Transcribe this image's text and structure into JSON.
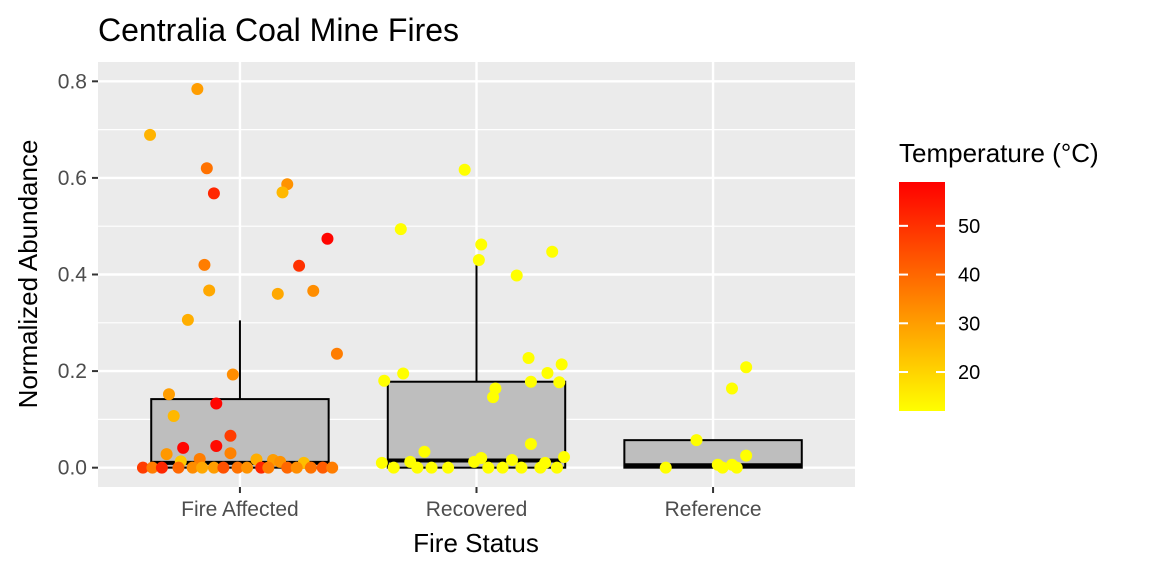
{
  "chart_data": {
    "type": "box",
    "title": "Centralia Coal Mine Fires",
    "xlabel": "Fire Status",
    "ylabel": "Normalized Abundance",
    "ylim": [
      -0.04,
      0.84
    ],
    "y_ticks": [
      0.0,
      0.2,
      0.4,
      0.6,
      0.8
    ],
    "y_tick_labels": [
      "0.0",
      "0.2",
      "0.4",
      "0.6",
      "0.8"
    ],
    "categories": [
      "Fire Affected",
      "Recovered",
      "Reference"
    ],
    "boxes": [
      {
        "category": "Fire Affected",
        "min": 0.0,
        "q1": 0.0,
        "median": 0.01,
        "q3": 0.142,
        "whisker_high": 0.305
      },
      {
        "category": "Recovered",
        "min": 0.0,
        "q1": 0.0,
        "median": 0.015,
        "q3": 0.178,
        "whisker_high": 0.44
      },
      {
        "category": "Reference",
        "min": 0.0,
        "q1": 0.0,
        "median": 0.005,
        "q3": 0.057,
        "whisker_high": 0.057
      }
    ],
    "points": [
      {
        "category": "Fire Affected",
        "jitter": -0.18,
        "y": 0.784,
        "temp": 30
      },
      {
        "category": "Fire Affected",
        "jitter": -0.38,
        "y": 0.689,
        "temp": 26
      },
      {
        "category": "Fire Affected",
        "jitter": -0.14,
        "y": 0.62,
        "temp": 38
      },
      {
        "category": "Fire Affected",
        "jitter": 0.2,
        "y": 0.587,
        "temp": 32
      },
      {
        "category": "Fire Affected",
        "jitter": 0.18,
        "y": 0.57,
        "temp": 25
      },
      {
        "category": "Fire Affected",
        "jitter": -0.11,
        "y": 0.568,
        "temp": 52
      },
      {
        "category": "Fire Affected",
        "jitter": 0.37,
        "y": 0.474,
        "temp": 58
      },
      {
        "category": "Fire Affected",
        "jitter": -0.15,
        "y": 0.42,
        "temp": 36
      },
      {
        "category": "Fire Affected",
        "jitter": 0.25,
        "y": 0.418,
        "temp": 50
      },
      {
        "category": "Fire Affected",
        "jitter": -0.13,
        "y": 0.367,
        "temp": 28
      },
      {
        "category": "Fire Affected",
        "jitter": 0.31,
        "y": 0.366,
        "temp": 33
      },
      {
        "category": "Fire Affected",
        "jitter": 0.16,
        "y": 0.36,
        "temp": 28
      },
      {
        "category": "Fire Affected",
        "jitter": -0.22,
        "y": 0.306,
        "temp": 27
      },
      {
        "category": "Fire Affected",
        "jitter": 0.41,
        "y": 0.236,
        "temp": 36
      },
      {
        "category": "Fire Affected",
        "jitter": -0.03,
        "y": 0.193,
        "temp": 33
      },
      {
        "category": "Fire Affected",
        "jitter": -0.3,
        "y": 0.152,
        "temp": 30
      },
      {
        "category": "Fire Affected",
        "jitter": -0.1,
        "y": 0.133,
        "temp": 58
      },
      {
        "category": "Fire Affected",
        "jitter": -0.28,
        "y": 0.107,
        "temp": 25
      },
      {
        "category": "Fire Affected",
        "jitter": -0.04,
        "y": 0.066,
        "temp": 48
      },
      {
        "category": "Fire Affected",
        "jitter": -0.24,
        "y": 0.041,
        "temp": 58
      },
      {
        "category": "Fire Affected",
        "jitter": -0.1,
        "y": 0.045,
        "temp": 57
      },
      {
        "category": "Fire Affected",
        "jitter": -0.04,
        "y": 0.03,
        "temp": 35
      },
      {
        "category": "Fire Affected",
        "jitter": -0.31,
        "y": 0.028,
        "temp": 31
      },
      {
        "category": "Fire Affected",
        "jitter": -0.17,
        "y": 0.018,
        "temp": 36
      },
      {
        "category": "Fire Affected",
        "jitter": 0.07,
        "y": 0.017,
        "temp": 27
      },
      {
        "category": "Fire Affected",
        "jitter": 0.14,
        "y": 0.016,
        "temp": 30
      },
      {
        "category": "Fire Affected",
        "jitter": -0.25,
        "y": 0.013,
        "temp": 22
      },
      {
        "category": "Fire Affected",
        "jitter": 0.17,
        "y": 0.012,
        "temp": 32
      },
      {
        "category": "Fire Affected",
        "jitter": 0.27,
        "y": 0.01,
        "temp": 24
      },
      {
        "category": "Fire Affected",
        "jitter": -0.41,
        "y": 0.0,
        "temp": 48
      },
      {
        "category": "Fire Affected",
        "jitter": -0.37,
        "y": 0.0,
        "temp": 36
      },
      {
        "category": "Fire Affected",
        "jitter": -0.33,
        "y": 0.0,
        "temp": 52
      },
      {
        "category": "Fire Affected",
        "jitter": -0.26,
        "y": 0.0,
        "temp": 40
      },
      {
        "category": "Fire Affected",
        "jitter": -0.2,
        "y": 0.0,
        "temp": 33
      },
      {
        "category": "Fire Affected",
        "jitter": -0.16,
        "y": 0.0,
        "temp": 28
      },
      {
        "category": "Fire Affected",
        "jitter": -0.11,
        "y": 0.0,
        "temp": 30
      },
      {
        "category": "Fire Affected",
        "jitter": -0.07,
        "y": 0.0,
        "temp": 44
      },
      {
        "category": "Fire Affected",
        "jitter": -0.01,
        "y": 0.0,
        "temp": 38
      },
      {
        "category": "Fire Affected",
        "jitter": 0.03,
        "y": 0.0,
        "temp": 32
      },
      {
        "category": "Fire Affected",
        "jitter": 0.09,
        "y": 0.0,
        "temp": 52
      },
      {
        "category": "Fire Affected",
        "jitter": 0.12,
        "y": 0.0,
        "temp": 36
      },
      {
        "category": "Fire Affected",
        "jitter": 0.2,
        "y": 0.0,
        "temp": 40
      },
      {
        "category": "Fire Affected",
        "jitter": 0.24,
        "y": 0.0,
        "temp": 33
      },
      {
        "category": "Fire Affected",
        "jitter": 0.3,
        "y": 0.0,
        "temp": 38
      },
      {
        "category": "Fire Affected",
        "jitter": 0.35,
        "y": 0.0,
        "temp": 42
      },
      {
        "category": "Fire Affected",
        "jitter": 0.39,
        "y": 0.0,
        "temp": 36
      },
      {
        "category": "Recovered",
        "jitter": -0.05,
        "y": 0.617,
        "temp": 12
      },
      {
        "category": "Recovered",
        "jitter": -0.32,
        "y": 0.494,
        "temp": 12
      },
      {
        "category": "Recovered",
        "jitter": 0.02,
        "y": 0.462,
        "temp": 12
      },
      {
        "category": "Recovered",
        "jitter": 0.32,
        "y": 0.447,
        "temp": 12
      },
      {
        "category": "Recovered",
        "jitter": 0.01,
        "y": 0.43,
        "temp": 12
      },
      {
        "category": "Recovered",
        "jitter": 0.17,
        "y": 0.398,
        "temp": 12
      },
      {
        "category": "Recovered",
        "jitter": 0.22,
        "y": 0.227,
        "temp": 12
      },
      {
        "category": "Recovered",
        "jitter": 0.36,
        "y": 0.214,
        "temp": 12
      },
      {
        "category": "Recovered",
        "jitter": 0.3,
        "y": 0.196,
        "temp": 12
      },
      {
        "category": "Recovered",
        "jitter": -0.31,
        "y": 0.195,
        "temp": 12
      },
      {
        "category": "Recovered",
        "jitter": -0.39,
        "y": 0.18,
        "temp": 12
      },
      {
        "category": "Recovered",
        "jitter": 0.23,
        "y": 0.178,
        "temp": 12
      },
      {
        "category": "Recovered",
        "jitter": 0.35,
        "y": 0.177,
        "temp": 12
      },
      {
        "category": "Recovered",
        "jitter": 0.08,
        "y": 0.164,
        "temp": 12
      },
      {
        "category": "Recovered",
        "jitter": 0.07,
        "y": 0.146,
        "temp": 12
      },
      {
        "category": "Recovered",
        "jitter": 0.23,
        "y": 0.049,
        "temp": 12
      },
      {
        "category": "Recovered",
        "jitter": -0.22,
        "y": 0.033,
        "temp": 12
      },
      {
        "category": "Recovered",
        "jitter": 0.37,
        "y": 0.022,
        "temp": 12
      },
      {
        "category": "Recovered",
        "jitter": 0.02,
        "y": 0.02,
        "temp": 12
      },
      {
        "category": "Recovered",
        "jitter": 0.15,
        "y": 0.016,
        "temp": 12
      },
      {
        "category": "Recovered",
        "jitter": -0.28,
        "y": 0.012,
        "temp": 12
      },
      {
        "category": "Recovered",
        "jitter": -0.4,
        "y": 0.01,
        "temp": 12
      },
      {
        "category": "Recovered",
        "jitter": -0.01,
        "y": 0.012,
        "temp": 12
      },
      {
        "category": "Recovered",
        "jitter": 0.29,
        "y": 0.01,
        "temp": 12
      },
      {
        "category": "Recovered",
        "jitter": -0.35,
        "y": 0.0,
        "temp": 12
      },
      {
        "category": "Recovered",
        "jitter": -0.25,
        "y": 0.0,
        "temp": 12
      },
      {
        "category": "Recovered",
        "jitter": -0.19,
        "y": 0.0,
        "temp": 12
      },
      {
        "category": "Recovered",
        "jitter": -0.12,
        "y": 0.0,
        "temp": 12
      },
      {
        "category": "Recovered",
        "jitter": 0.05,
        "y": 0.0,
        "temp": 12
      },
      {
        "category": "Recovered",
        "jitter": 0.11,
        "y": 0.0,
        "temp": 12
      },
      {
        "category": "Recovered",
        "jitter": 0.19,
        "y": 0.0,
        "temp": 12
      },
      {
        "category": "Recovered",
        "jitter": 0.27,
        "y": 0.0,
        "temp": 12
      },
      {
        "category": "Recovered",
        "jitter": 0.34,
        "y": 0.0,
        "temp": 12
      },
      {
        "category": "Reference",
        "jitter": 0.14,
        "y": 0.208,
        "temp": 12
      },
      {
        "category": "Reference",
        "jitter": 0.08,
        "y": 0.164,
        "temp": 12
      },
      {
        "category": "Reference",
        "jitter": -0.07,
        "y": 0.057,
        "temp": 12
      },
      {
        "category": "Reference",
        "jitter": 0.14,
        "y": 0.025,
        "temp": 12
      },
      {
        "category": "Reference",
        "jitter": 0.02,
        "y": 0.006,
        "temp": 12
      },
      {
        "category": "Reference",
        "jitter": 0.08,
        "y": 0.006,
        "temp": 12
      },
      {
        "category": "Reference",
        "jitter": -0.2,
        "y": 0.0,
        "temp": 12
      },
      {
        "category": "Reference",
        "jitter": 0.04,
        "y": 0.0,
        "temp": 12
      },
      {
        "category": "Reference",
        "jitter": 0.1,
        "y": 0.0,
        "temp": 12
      }
    ],
    "colorbar": {
      "title": "Temperature (°C)",
      "min": 12,
      "max": 59,
      "ticks": [
        20,
        30,
        40,
        50
      ],
      "tick_labels": [
        "20",
        "30",
        "40",
        "50"
      ],
      "color_low": "#ffff00",
      "color_mid": "#ff9900",
      "color_high": "#ff0000"
    },
    "grid": true,
    "legend_position": "right"
  },
  "colors": {
    "panel_background": "#ebebeb",
    "grid": "#ffffff",
    "box_fill": "#bebebe",
    "box_stroke": "#000000"
  }
}
